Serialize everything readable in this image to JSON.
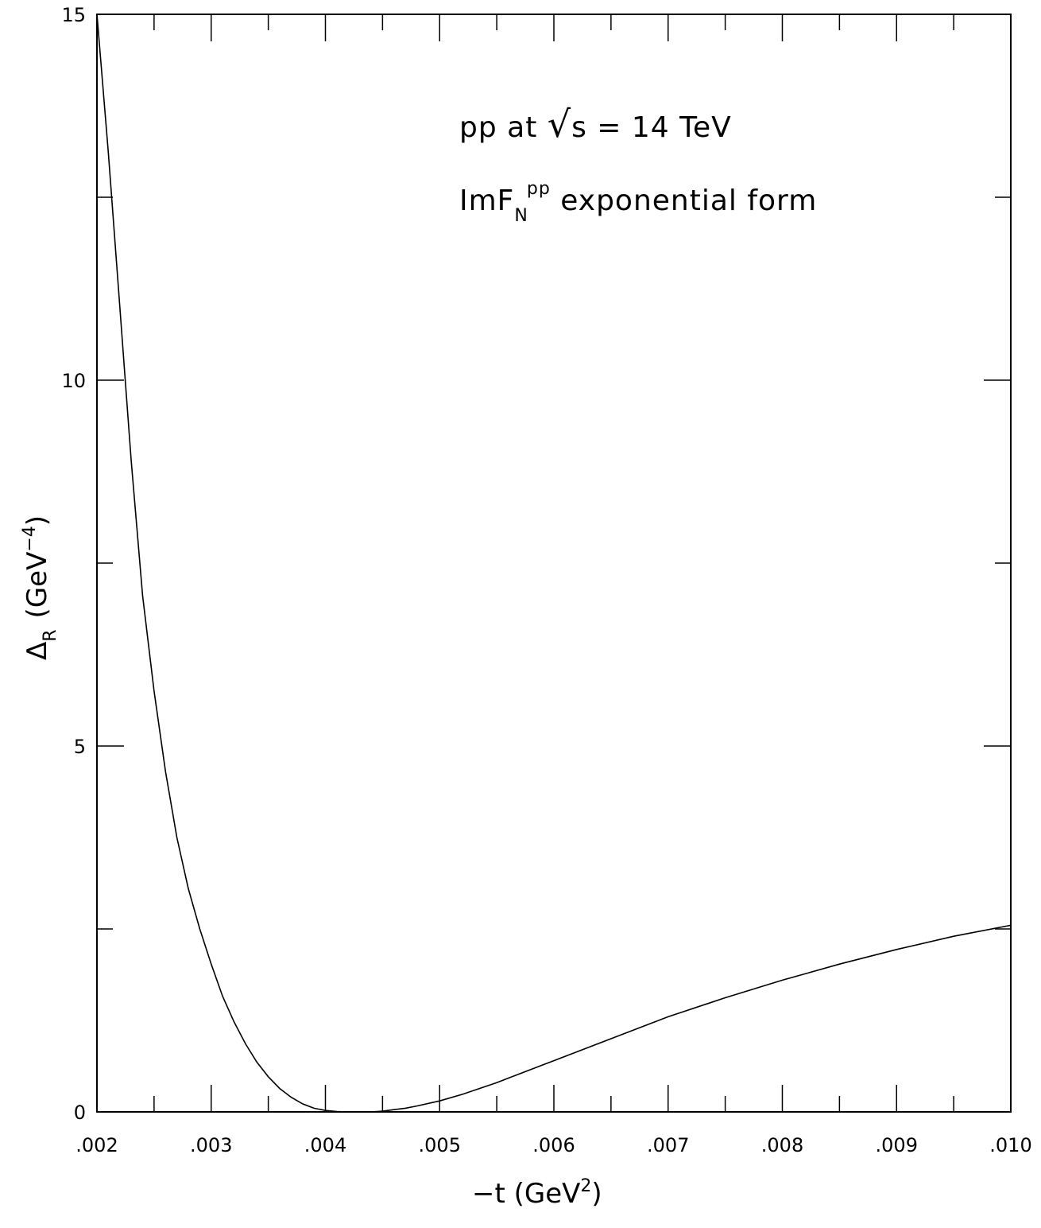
{
  "chart_data": {
    "type": "line",
    "title": "",
    "xlabel": {
      "main": "−t  (GeV",
      "sup": "2",
      "end": ")"
    },
    "ylabel": {
      "main": "Δ",
      "sub": "R",
      "units": "(GeV",
      "sup": "−4",
      "end": ")"
    },
    "xlim": [
      0.002,
      0.01
    ],
    "ylim": [
      0,
      15
    ],
    "x_tick_labels": [
      {
        "value": 0.002,
        "label": ".002"
      },
      {
        "value": 0.003,
        "label": ".003"
      },
      {
        "value": 0.004,
        "label": ".004"
      },
      {
        "value": 0.005,
        "label": ".005"
      },
      {
        "value": 0.006,
        "label": ".006"
      },
      {
        "value": 0.007,
        "label": ".007"
      },
      {
        "value": 0.008,
        "label": ".008"
      },
      {
        "value": 0.009,
        "label": ".009"
      },
      {
        "value": 0.01,
        "label": ".010"
      }
    ],
    "x_minor_step": 0.0005,
    "y_tick_labels": [
      {
        "value": 0,
        "label": "0"
      },
      {
        "value": 5,
        "label": "5"
      },
      {
        "value": 10,
        "label": "10"
      },
      {
        "value": 15,
        "label": "15"
      }
    ],
    "y_minor_step": 2.5,
    "grid": false,
    "annotations": {
      "line1": {
        "pre": "pp  at  ",
        "root": "√",
        "post": "s  =  14  TeV"
      },
      "line2": {
        "pre": "ImF",
        "sub": "N",
        "sup": "pp",
        "post": "  exponential  form"
      }
    },
    "series": [
      {
        "x": [
          0.002,
          0.0021,
          0.0022,
          0.0023,
          0.0024,
          0.0025,
          0.0026,
          0.0027,
          0.0028,
          0.0029,
          0.003,
          0.0031,
          0.0032,
          0.0033,
          0.0034,
          0.0035,
          0.0036,
          0.0037,
          0.0038,
          0.0039,
          0.004,
          0.0041,
          0.0042,
          0.0043,
          0.0044,
          0.0045,
          0.0046,
          0.0047,
          0.0048,
          0.005,
          0.0052,
          0.0055,
          0.0058,
          0.006,
          0.0065,
          0.007,
          0.0075,
          0.008,
          0.0085,
          0.009,
          0.0095,
          0.01
        ],
        "y": [
          15.0,
          13.1,
          11.0,
          8.9,
          7.05,
          5.75,
          4.65,
          3.75,
          3.05,
          2.5,
          2.02,
          1.58,
          1.23,
          0.93,
          0.68,
          0.48,
          0.32,
          0.2,
          0.11,
          0.05,
          0.02,
          0.005,
          0.0,
          0.0,
          0.0,
          0.01,
          0.03,
          0.05,
          0.08,
          0.15,
          0.24,
          0.4,
          0.58,
          0.7,
          1.0,
          1.3,
          1.56,
          1.8,
          2.02,
          2.22,
          2.4,
          2.55
        ]
      }
    ]
  }
}
